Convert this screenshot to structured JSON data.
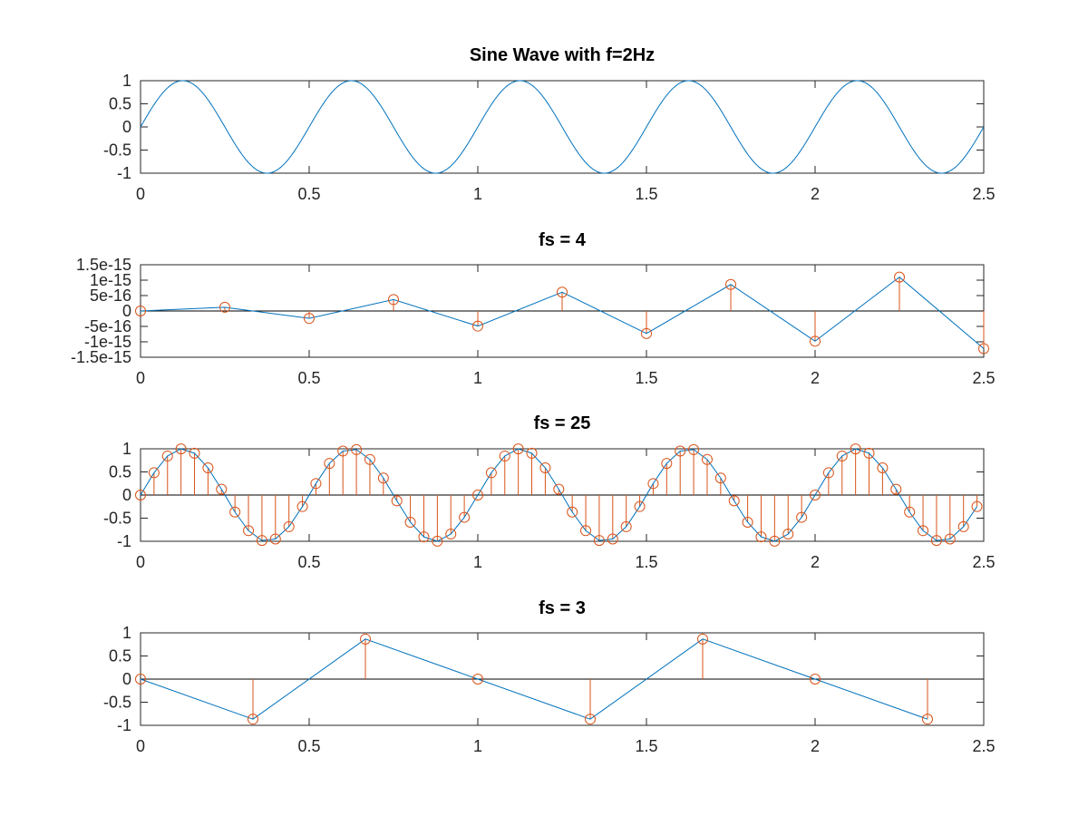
{
  "chart_data": [
    {
      "type": "line",
      "title": "Sine Wave with f=2Hz",
      "function": "sin(2*pi*2*t)",
      "frequency": 2,
      "xlim": [
        0,
        2.5
      ],
      "ylim": [
        -1,
        1
      ],
      "xticks": [
        "0",
        "0.5",
        "1",
        "1.5",
        "2",
        "2.5"
      ],
      "yticks": [
        "1",
        "0.5",
        "0",
        "-0.5",
        "-1"
      ],
      "series": [
        {
          "color": "#0072bd"
        }
      ]
    },
    {
      "type": "line",
      "title": "fs = 4",
      "sampling_rate": 4,
      "xlim": [
        0,
        2.5
      ],
      "ylim": [
        -1.5e-15,
        1.5e-15
      ],
      "xticks": [
        "0",
        "0.5",
        "1",
        "1.5",
        "2",
        "2.5"
      ],
      "yticks": [
        "1.5e-15",
        "1e-15",
        "5e-16",
        "0",
        "-5e-16",
        "-1e-15",
        "-1.5e-15"
      ],
      "x": [
        0,
        0.25,
        0.5,
        0.75,
        1,
        1.25,
        1.5,
        1.75,
        2,
        2.25,
        2.5
      ],
      "y": [
        0,
        1.2e-16,
        -2.4e-16,
        3.7e-16,
        -4.9e-16,
        6.1e-16,
        -7.3e-16,
        8.6e-16,
        -9.8e-16,
        1.1e-15,
        -1.22e-15
      ],
      "series": [
        {
          "color": "#0072bd"
        },
        {
          "color": "#d95319",
          "style": "stem"
        }
      ]
    },
    {
      "type": "line",
      "title": "fs = 25",
      "sampling_rate": 25,
      "function": "sin(2*pi*2*t)",
      "xlim": [
        0,
        2.5
      ],
      "ylim": [
        -1,
        1
      ],
      "xticks": [
        "0",
        "0.5",
        "1",
        "1.5",
        "2",
        "2.5"
      ],
      "yticks": [
        "1",
        "0.5",
        "0",
        "-0.5",
        "-1"
      ],
      "series": [
        {
          "color": "#0072bd"
        },
        {
          "color": "#d95319",
          "style": "stem"
        }
      ]
    },
    {
      "type": "line",
      "title": "fs = 3",
      "sampling_rate": 3,
      "xlim": [
        0,
        2.5
      ],
      "ylim": [
        -1,
        1
      ],
      "xticks": [
        "0",
        "0.5",
        "1",
        "1.5",
        "2",
        "2.5"
      ],
      "yticks": [
        "1",
        "0.5",
        "0",
        "-0.5",
        "-1"
      ],
      "x": [
        0,
        0.3333,
        0.6667,
        1,
        1.3333,
        1.6667,
        2,
        2.3333
      ],
      "y": [
        0,
        -0.866,
        0.866,
        0,
        -0.866,
        0.866,
        0,
        -0.866
      ],
      "series": [
        {
          "color": "#0072bd"
        },
        {
          "color": "#d95319",
          "style": "stem"
        }
      ]
    }
  ]
}
